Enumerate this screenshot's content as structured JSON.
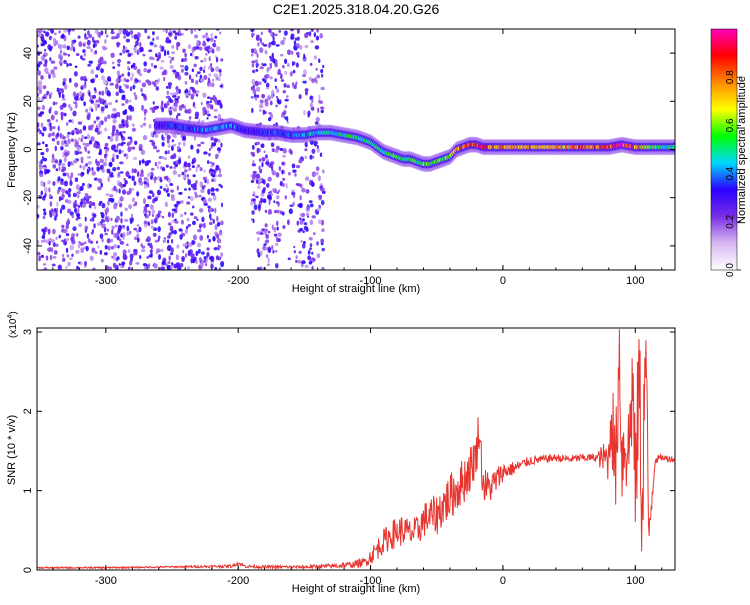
{
  "page_title": "C2E1.2025.318.04.20.G26",
  "chart_data": [
    {
      "type": "heatmap",
      "title": "C2E1.2025.318.04.20.G26",
      "xlabel": "Height of straight line (km)",
      "ylabel": "Frequency (Hz)",
      "xlim": [
        -352,
        130
      ],
      "ylim": [
        -50,
        50
      ],
      "xticks": [
        -300,
        -200,
        -100,
        0,
        100
      ],
      "yticks": [
        -40,
        -20,
        0,
        20,
        40
      ],
      "colorbar": {
        "label": "Normalized spectral amplitude",
        "range": [
          0,
          1
        ],
        "ticks": [
          0.0,
          0.2,
          0.4,
          0.6,
          0.8
        ],
        "tick_labels": [
          "0.0",
          "0.2",
          "0.4",
          "0.6",
          "0.8"
        ],
        "colors": [
          "#ffffff",
          "#d7b8f2",
          "#7a2ee6",
          "#2a00ff",
          "#00d8ff",
          "#00ff00",
          "#ffff00",
          "#ff8a00",
          "#ff0000",
          "#ff00bb"
        ]
      },
      "ridge": {
        "x": [
          -262,
          -250,
          -240,
          -225,
          -215,
          -205,
          -195,
          -180,
          -170,
          -160,
          -150,
          -140,
          -130,
          -120,
          -110,
          -100,
          -95,
          -90,
          -85,
          -80,
          -75,
          -70,
          -65,
          -60,
          -55,
          -50,
          -45,
          -40,
          -35,
          -30,
          -25,
          -20,
          -15,
          -10,
          0,
          10,
          20,
          40,
          60,
          80,
          90,
          100,
          110,
          120,
          130
        ],
        "y": [
          10,
          10,
          9,
          8,
          9,
          10,
          8,
          7,
          7,
          6,
          6,
          7,
          7,
          6,
          5,
          3,
          1,
          -1,
          -2,
          -3,
          -4,
          -4,
          -5,
          -6,
          -6,
          -5,
          -4,
          -3,
          0,
          1,
          2,
          2,
          1,
          1,
          1,
          1,
          1,
          1,
          1,
          1,
          2,
          1,
          1,
          1,
          1
        ],
        "amplitude": [
          0.3,
          0.35,
          0.35,
          0.4,
          0.45,
          0.4,
          0.3,
          0.35,
          0.4,
          0.35,
          0.4,
          0.45,
          0.45,
          0.5,
          0.5,
          0.45,
          0.5,
          0.5,
          0.55,
          0.55,
          0.5,
          0.5,
          0.55,
          0.55,
          0.6,
          0.6,
          0.55,
          0.6,
          0.7,
          0.8,
          0.85,
          0.9,
          0.85,
          0.8,
          0.75,
          0.8,
          0.75,
          0.7,
          0.8,
          0.85,
          0.9,
          0.8,
          0.6,
          0.5,
          0.5
        ]
      }
    },
    {
      "type": "line",
      "xlabel": "Height of straight line (km)",
      "ylabel": "SNR (10 * v/v)",
      "multiplier_label": "(x10",
      "multiplier_exp": "4",
      "multiplier_close": ")",
      "xlim": [
        -352,
        130
      ],
      "ylim": [
        0,
        3.05
      ],
      "xticks": [
        -300,
        -200,
        -100,
        0,
        100
      ],
      "yticks": [
        0,
        1,
        2,
        3
      ],
      "color": "#e8342f",
      "series": [
        {
          "x": [
            -352,
            -300,
            -250,
            -205,
            -200,
            -195,
            -180,
            -150,
            -130,
            -115,
            -105,
            -100,
            -95,
            -90,
            -85,
            -80,
            -75,
            -70,
            -65,
            -60,
            -55,
            -50,
            -45,
            -40,
            -35,
            -30,
            -25,
            -20,
            -18,
            -15,
            -10,
            -5,
            0,
            10,
            20,
            30,
            40,
            50,
            60,
            70,
            80,
            82,
            85,
            88,
            90,
            92,
            95,
            98,
            100,
            103,
            105,
            108,
            110,
            115,
            120,
            130
          ],
          "y": [
            0.03,
            0.03,
            0.04,
            0.05,
            0.09,
            0.05,
            0.04,
            0.04,
            0.05,
            0.07,
            0.1,
            0.18,
            0.28,
            0.38,
            0.45,
            0.5,
            0.52,
            0.48,
            0.5,
            0.65,
            0.7,
            0.72,
            0.85,
            0.95,
            1.05,
            1.15,
            1.3,
            1.5,
            1.85,
            1.1,
            1.05,
            1.15,
            1.25,
            1.3,
            1.38,
            1.4,
            1.42,
            1.4,
            1.42,
            1.42,
            1.43,
            2.15,
            1.2,
            2.85,
            1.4,
            1.7,
            1.55,
            2.5,
            1.0,
            2.65,
            0.8,
            3.02,
            0.45,
            1.4,
            1.42,
            1.4
          ],
          "noise": [
            0.01,
            0.01,
            0.01,
            0.02,
            0.02,
            0.02,
            0.02,
            0.02,
            0.03,
            0.04,
            0.06,
            0.1,
            0.14,
            0.16,
            0.18,
            0.2,
            0.2,
            0.18,
            0.2,
            0.22,
            0.24,
            0.26,
            0.28,
            0.3,
            0.3,
            0.3,
            0.3,
            0.28,
            0.3,
            0.25,
            0.2,
            0.18,
            0.12,
            0.08,
            0.06,
            0.05,
            0.05,
            0.05,
            0.05,
            0.05,
            0.3,
            0.6,
            0.6,
            0.7,
            0.6,
            0.6,
            0.7,
            0.8,
            0.8,
            0.9,
            0.9,
            0.9,
            0.3,
            0.05,
            0.04,
            0.04
          ]
        }
      ]
    }
  ]
}
